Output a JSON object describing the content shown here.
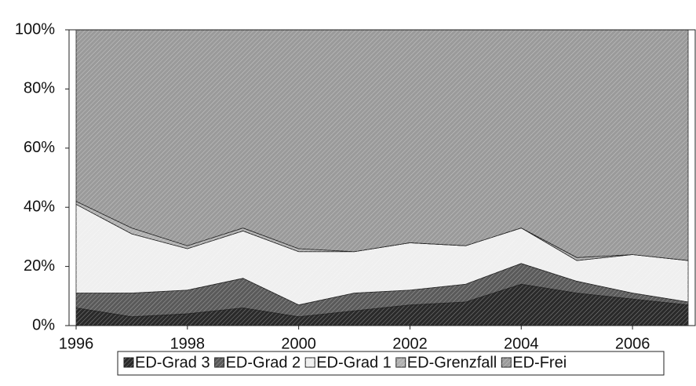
{
  "chart_data": {
    "type": "stacked_area",
    "x": [
      1996,
      1997,
      1998,
      1999,
      2000,
      2001,
      2002,
      2003,
      2004,
      2005,
      2006,
      2007
    ],
    "xlim": [
      1996,
      2007
    ],
    "xticks": [
      1996,
      1998,
      2000,
      2002,
      2004,
      2006
    ],
    "ylim": [
      0,
      100
    ],
    "yticks": [
      {
        "value": 0,
        "label": "0%"
      },
      {
        "value": 20,
        "label": "20%"
      },
      {
        "value": 40,
        "label": "40%"
      },
      {
        "value": 60,
        "label": "60%"
      },
      {
        "value": 80,
        "label": "80%"
      },
      {
        "value": 100,
        "label": "100%"
      }
    ],
    "series": [
      {
        "name": "ED-Grad 3",
        "color": "#2a2a2a",
        "values": [
          6,
          3,
          4,
          6,
          3,
          5,
          7,
          8,
          14,
          11,
          9,
          7
        ]
      },
      {
        "name": "ED-Grad 2",
        "color": "#5a5a5a",
        "values": [
          5,
          8,
          8,
          10,
          4,
          6,
          5,
          6,
          7,
          4,
          2,
          1
        ]
      },
      {
        "name": "ED-Grad 1",
        "color": "#efefef",
        "values": [
          30,
          20,
          14,
          16,
          18,
          14,
          16,
          13,
          12,
          7,
          13,
          14
        ]
      },
      {
        "name": "ED-Grenzfall",
        "color": "#b0b0b0",
        "values": [
          1,
          2,
          1,
          1,
          1,
          0,
          0,
          0,
          0,
          1,
          0,
          0
        ]
      },
      {
        "name": "ED-Frei",
        "color": "#9a9a9a",
        "values": [
          58,
          67,
          73,
          67,
          74,
          75,
          72,
          73,
          67,
          77,
          76,
          78
        ]
      }
    ],
    "legend": "bottom"
  }
}
